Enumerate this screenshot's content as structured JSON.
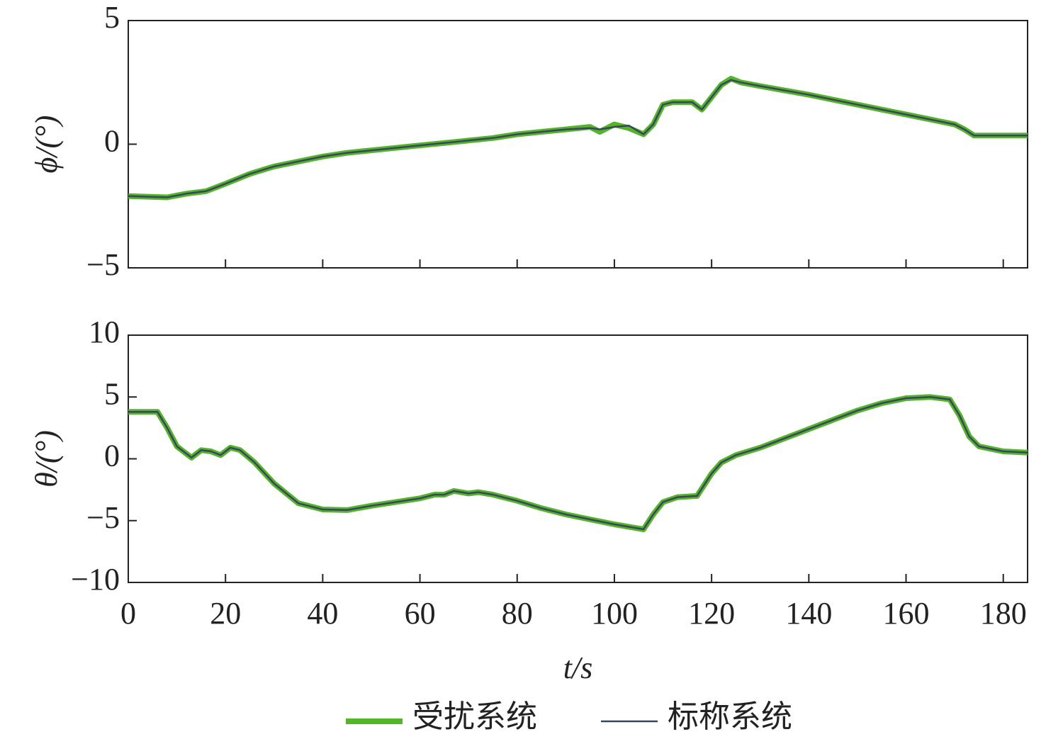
{
  "chart_data": [
    {
      "type": "line",
      "ylabel": "ϕ/(°)",
      "x": [
        0,
        8,
        12,
        16,
        20,
        25,
        30,
        35,
        40,
        45,
        50,
        55,
        60,
        65,
        70,
        75,
        80,
        85,
        90,
        95,
        97,
        100,
        103,
        106,
        108,
        110,
        112,
        116,
        118,
        120,
        122,
        124,
        126,
        130,
        140,
        150,
        160,
        170,
        172,
        174,
        180,
        185
      ],
      "series": [
        {
          "color": "#55b52a",
          "values": [
            -2.1,
            -2.15,
            -2.0,
            -1.9,
            -1.6,
            -1.2,
            -0.9,
            -0.7,
            -0.5,
            -0.35,
            -0.25,
            -0.15,
            -0.05,
            0.05,
            0.15,
            0.25,
            0.4,
            0.5,
            0.6,
            0.7,
            0.5,
            0.8,
            0.65,
            0.4,
            0.8,
            1.6,
            1.7,
            1.7,
            1.4,
            1.9,
            2.4,
            2.65,
            2.5,
            2.35,
            2.0,
            1.6,
            1.2,
            0.8,
            0.6,
            0.35,
            0.35,
            0.35
          ]
        },
        {
          "color": "#3a4560",
          "values": [
            -2.1,
            -2.15,
            -2.0,
            -1.9,
            -1.6,
            -1.2,
            -0.9,
            -0.7,
            -0.5,
            -0.35,
            -0.25,
            -0.15,
            -0.05,
            0.05,
            0.15,
            0.25,
            0.4,
            0.5,
            0.6,
            0.65,
            0.6,
            0.7,
            0.75,
            0.4,
            0.8,
            1.6,
            1.7,
            1.7,
            1.4,
            1.9,
            2.4,
            2.6,
            2.5,
            2.35,
            2.0,
            1.6,
            1.2,
            0.8,
            0.6,
            0.35,
            0.35,
            0.35
          ]
        }
      ],
      "xlim": [
        0,
        185
      ],
      "xticks": [
        0,
        20,
        40,
        60,
        80,
        100,
        120,
        140,
        160,
        180
      ],
      "ylim": [
        -5,
        5
      ],
      "yticks": [
        {
          "value": -5,
          "label": "−5"
        },
        0,
        5
      ]
    },
    {
      "type": "line",
      "ylabel": "θ/(°)",
      "xlabel": "t/s",
      "x": [
        0,
        6,
        8,
        10,
        13,
        15,
        17,
        19,
        21,
        23,
        26,
        30,
        35,
        40,
        45,
        50,
        55,
        60,
        63,
        65,
        67,
        70,
        72,
        75,
        80,
        85,
        90,
        95,
        100,
        106,
        108,
        110,
        113,
        117,
        120,
        122,
        125,
        130,
        140,
        150,
        155,
        160,
        165,
        169,
        171,
        173,
        175,
        180,
        185
      ],
      "series": [
        {
          "name": "受扰系统",
          "color": "#55b52a",
          "values": [
            3.8,
            3.8,
            2.5,
            1.0,
            0.1,
            0.7,
            0.6,
            0.3,
            0.9,
            0.7,
            -0.3,
            -2.0,
            -3.6,
            -4.1,
            -4.15,
            -3.8,
            -3.5,
            -3.2,
            -2.9,
            -2.9,
            -2.6,
            -2.8,
            -2.7,
            -2.9,
            -3.4,
            -4.0,
            -4.5,
            -4.9,
            -5.3,
            -5.7,
            -4.5,
            -3.5,
            -3.1,
            -3.0,
            -1.2,
            -0.3,
            0.3,
            0.9,
            2.4,
            3.9,
            4.5,
            4.9,
            5.0,
            4.8,
            3.5,
            1.8,
            1.0,
            0.6,
            0.5
          ]
        },
        {
          "name": "标称系统",
          "color": "#3a4560",
          "values": [
            3.8,
            3.8,
            2.5,
            1.0,
            0.1,
            0.7,
            0.6,
            0.3,
            0.9,
            0.7,
            -0.3,
            -2.0,
            -3.6,
            -4.1,
            -4.15,
            -3.8,
            -3.5,
            -3.2,
            -2.9,
            -2.9,
            -2.6,
            -2.8,
            -2.7,
            -2.9,
            -3.4,
            -4.0,
            -4.5,
            -4.9,
            -5.3,
            -5.7,
            -4.5,
            -3.5,
            -3.1,
            -3.0,
            -1.2,
            -0.3,
            0.3,
            0.9,
            2.4,
            3.9,
            4.5,
            4.9,
            5.0,
            4.8,
            3.5,
            1.8,
            1.0,
            0.6,
            0.5
          ]
        }
      ],
      "xlim": [
        0,
        185
      ],
      "xticks": [
        0,
        20,
        40,
        60,
        80,
        100,
        120,
        140,
        160,
        180
      ],
      "ylim": [
        -10,
        10
      ],
      "yticks": [
        {
          "value": -10,
          "label": "−10"
        },
        {
          "value": -5,
          "label": "−5"
        },
        0,
        5,
        10
      ],
      "legend": "bottom"
    }
  ]
}
